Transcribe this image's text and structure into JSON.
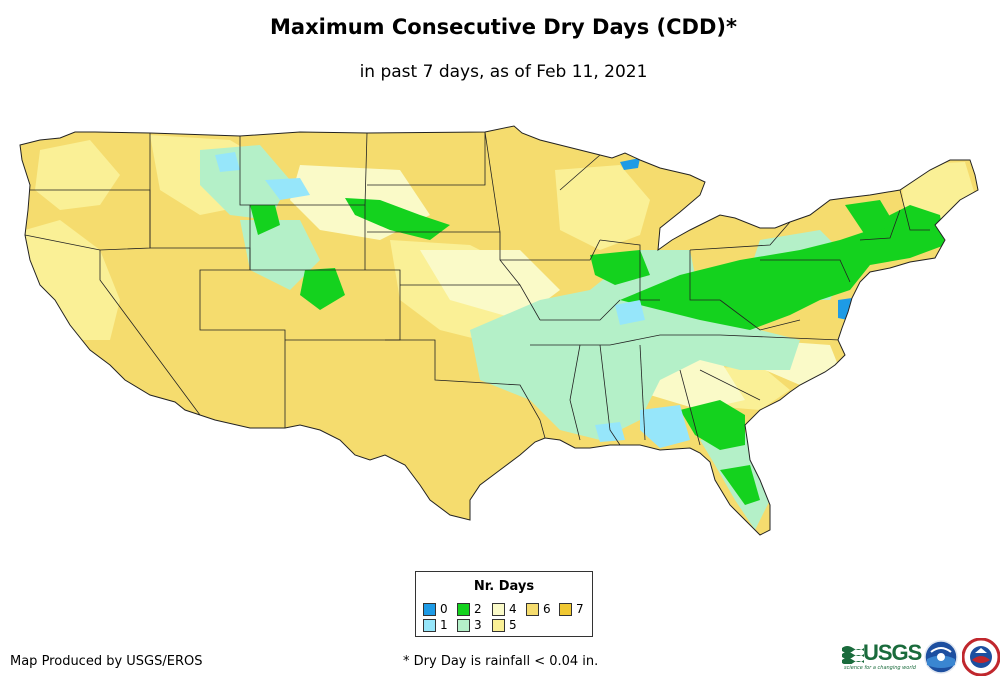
{
  "title": "Maximum Consecutive Dry Days (CDD)*",
  "subtitle": "in past 7 days, as of Feb 11, 2021",
  "legend": {
    "title": "Nr. Days",
    "items": [
      {
        "label": "0",
        "color": "#1e9be6"
      },
      {
        "label": "1",
        "color": "#96e6fa"
      },
      {
        "label": "2",
        "color": "#14d21e"
      },
      {
        "label": "3",
        "color": "#b4f0c8"
      },
      {
        "label": "4",
        "color": "#fafac8"
      },
      {
        "label": "5",
        "color": "#faf096"
      },
      {
        "label": "6",
        "color": "#f5dc6e"
      },
      {
        "label": "7",
        "color": "#f0c832"
      }
    ]
  },
  "credit": "Map Produced by USGS/EROS",
  "footnote": "* Dry Day is rainfall < 0.04 in.",
  "logos": {
    "usgs_text": "USGS",
    "usgs_tagline": "science for a changing world"
  },
  "colors": {
    "state_border": "#222222",
    "background": "#ffffff"
  }
}
